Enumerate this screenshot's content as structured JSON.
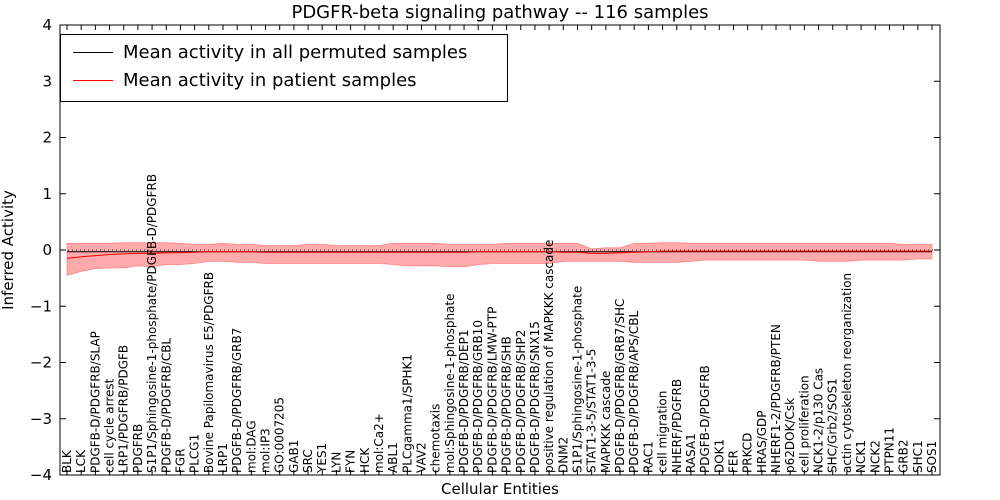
{
  "chart_data": {
    "type": "line",
    "title": "PDGFR-beta signaling pathway -- 116 samples",
    "xlabel": "Cellular Entities",
    "ylabel": "Inferred Activity",
    "ylim": [
      -4,
      4
    ],
    "yticks": [
      "−4",
      "−3",
      "−2",
      "−1",
      "0",
      "1",
      "2",
      "3",
      "4"
    ],
    "grid": false,
    "legend_position": "top-left",
    "colors": {
      "permuted": "#000000",
      "patient": "#ff0000",
      "band": "#ff6666"
    },
    "categories": [
      "BLK",
      "LCK",
      "PDGFB-D/PDGFRB/SLAP",
      "cell cycle arrest",
      "LRP1/PDGFRB/PDGFB",
      "PDGFRB",
      "S1P1/Sphingosine-1-phosphate/PDGFB-D/PDGFRB",
      "PDGFB-D/PDGFRB/CBL",
      "FGR",
      "PLCG1",
      "Bovine Papilomavirus E5/PDGFRB",
      "LRP1",
      "PDGFB-D/PDGFRB/GRB7",
      "mol:DAG",
      "mol:IP3",
      "GO:0007205",
      "GAB1",
      "SRC",
      "YES1",
      "LYN",
      "FYN",
      "HCK",
      "mol:Ca2+",
      "ABL1",
      "PLCgamma1/SPHK1",
      "VAV2",
      "chemotaxis",
      "mol:Sphingosine-1-phosphate",
      "PDGFB-D/PDGFRB/DEP1",
      "PDGFB-D/PDGFRB/GRB10",
      "PDGFB-D/PDGFRB/LMW-PTP",
      "PDGFB-D/PDGFRB/SHB",
      "PDGFB-D/PDGFRB/SHP2",
      "PDGFB-D/PDGFRB/SNX15",
      "positive regulation of MAPKKK cascade",
      "DNM2",
      "S1P1/Sphingosine-1-phosphate",
      "STAT1-3-5/STAT1-3-5",
      "MAPKKK cascade",
      "PDGFB-D/PDGFRB/GRB7/SHC",
      "PDGFB-D/PDGFRB/APS/CBL",
      "RAC1",
      "cell migration",
      "NHERF/PDGFRB",
      "RASA1",
      "PDGFB-D/PDGFRB",
      "DOK1",
      "FER",
      "PRKCD",
      "HRAS/GDP",
      "NHERF1-2/PDGFRB/PTEN",
      "p62DOK/Csk",
      "cell proliferation",
      "NCK1-2/p130 Cas",
      "SHC/Grb2/SOS1",
      "actin cytoskeleton reorganization",
      "NCK1",
      "NCK2",
      "PTPN11",
      "GRB2",
      "SHC1",
      "SOS1"
    ],
    "series": [
      {
        "name": "Mean activity in all permuted samples",
        "values": [
          -0.03,
          -0.03,
          -0.03,
          -0.03,
          -0.03,
          -0.03,
          -0.03,
          -0.03,
          -0.03,
          -0.03,
          -0.03,
          -0.03,
          -0.03,
          -0.03,
          -0.03,
          -0.03,
          -0.03,
          -0.03,
          -0.03,
          -0.03,
          -0.03,
          -0.03,
          -0.03,
          -0.03,
          -0.03,
          -0.03,
          -0.03,
          -0.03,
          -0.03,
          -0.03,
          -0.03,
          -0.03,
          -0.03,
          -0.03,
          -0.03,
          -0.03,
          -0.03,
          -0.03,
          -0.03,
          -0.03,
          -0.03,
          -0.03,
          -0.03,
          -0.03,
          -0.03,
          -0.03,
          -0.03,
          -0.03,
          -0.03,
          -0.03,
          -0.03,
          -0.03,
          -0.03,
          -0.03,
          -0.03,
          -0.03,
          -0.03,
          -0.03,
          -0.03,
          -0.03,
          -0.03,
          -0.03
        ]
      },
      {
        "name": "Mean activity in patient samples",
        "values": [
          -0.15,
          -0.12,
          -0.1,
          -0.08,
          -0.07,
          -0.06,
          -0.06,
          -0.05,
          -0.05,
          -0.04,
          -0.03,
          -0.03,
          -0.03,
          -0.03,
          -0.04,
          -0.04,
          -0.04,
          -0.04,
          -0.04,
          -0.04,
          -0.04,
          -0.04,
          -0.04,
          -0.04,
          -0.04,
          -0.04,
          -0.04,
          -0.04,
          -0.04,
          -0.03,
          -0.03,
          -0.03,
          -0.03,
          -0.03,
          -0.03,
          -0.04,
          -0.04,
          -0.06,
          -0.06,
          -0.05,
          -0.04,
          -0.03,
          -0.02,
          -0.02,
          -0.02,
          -0.02,
          -0.02,
          -0.02,
          -0.02,
          -0.02,
          -0.02,
          -0.02,
          -0.02,
          -0.02,
          -0.02,
          -0.02,
          -0.02,
          -0.02,
          -0.02,
          -0.02,
          -0.02,
          -0.02
        ],
        "upper": [
          0.12,
          0.12,
          0.12,
          0.12,
          0.13,
          0.13,
          0.13,
          0.13,
          0.12,
          0.1,
          0.1,
          0.12,
          0.1,
          0.1,
          0.08,
          0.08,
          0.08,
          0.1,
          0.1,
          0.08,
          0.08,
          0.08,
          0.08,
          0.12,
          0.12,
          0.12,
          0.12,
          0.1,
          0.1,
          0.1,
          0.1,
          0.12,
          0.12,
          0.12,
          0.12,
          0.12,
          0.12,
          0.02,
          0.04,
          0.04,
          0.12,
          0.12,
          0.13,
          0.13,
          0.12,
          0.12,
          0.12,
          0.12,
          0.12,
          0.12,
          0.12,
          0.12,
          0.12,
          0.12,
          0.12,
          0.12,
          0.12,
          0.12,
          0.12,
          0.1,
          0.1,
          0.1
        ],
        "lower": [
          -0.45,
          -0.38,
          -0.33,
          -0.32,
          -0.32,
          -0.28,
          -0.3,
          -0.26,
          -0.26,
          -0.24,
          -0.2,
          -0.2,
          -0.22,
          -0.22,
          -0.24,
          -0.24,
          -0.24,
          -0.24,
          -0.24,
          -0.24,
          -0.24,
          -0.24,
          -0.24,
          -0.26,
          -0.28,
          -0.28,
          -0.28,
          -0.3,
          -0.3,
          -0.26,
          -0.24,
          -0.24,
          -0.24,
          -0.24,
          -0.24,
          -0.2,
          -0.2,
          -0.2,
          -0.2,
          -0.2,
          -0.22,
          -0.22,
          -0.22,
          -0.22,
          -0.2,
          -0.18,
          -0.18,
          -0.18,
          -0.18,
          -0.18,
          -0.18,
          -0.18,
          -0.18,
          -0.2,
          -0.2,
          -0.2,
          -0.18,
          -0.18,
          -0.18,
          -0.18,
          -0.16,
          -0.16
        ]
      }
    ]
  }
}
